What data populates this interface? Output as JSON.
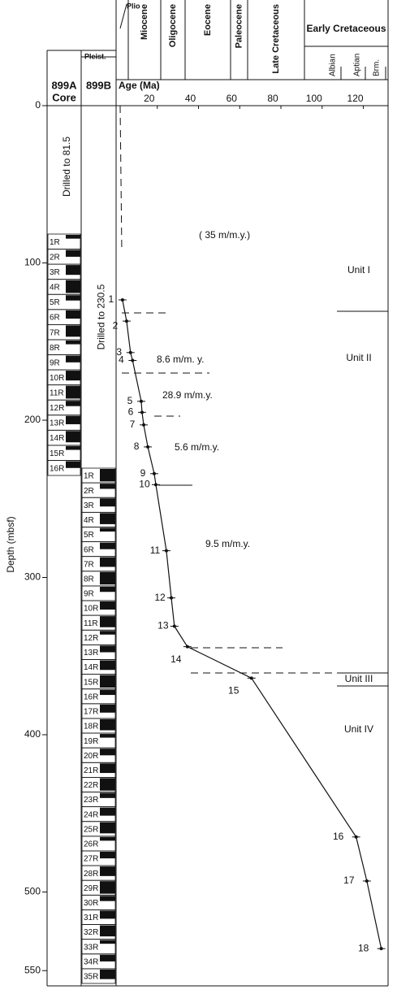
{
  "chart_data": {
    "type": "line",
    "x_label": "Age (Ma)",
    "y_label": "Depth (mbsf)",
    "xlim": [
      0,
      132
    ],
    "xticks": [
      20,
      40,
      60,
      80,
      100,
      120
    ],
    "ylim": [
      0,
      560
    ],
    "yticks": [
      0,
      100,
      200,
      300,
      400,
      500,
      550
    ],
    "epochs": [
      "Plio",
      "Miocene",
      "Oligocene",
      "Eocene",
      "Paleocene",
      "Late Cretaceous",
      "Early Cretaceous"
    ],
    "stages": [
      "Albian",
      "Aptian",
      "Brm."
    ],
    "pleistocene": "Pleist.",
    "x": [
      3.1,
      5.1,
      7,
      8,
      12.2,
      12.6,
      13.4,
      15.4,
      18.5,
      19.3,
      24.4,
      26.8,
      28.3,
      34.6,
      65.7,
      116.5,
      121.7,
      128.7
    ],
    "series": [
      {
        "color": "#111111",
        "values": [
          123.5,
          137,
          157,
          162,
          188,
          195,
          203,
          217,
          234,
          241,
          283,
          313,
          331,
          344,
          364,
          465,
          493,
          536
        ]
      }
    ],
    "point_labels": [
      "1",
      "2",
      "3",
      "4",
      "5",
      "6",
      "7",
      "8",
      "9",
      "10",
      "11",
      "12",
      "13",
      "14",
      "15",
      "16",
      "17",
      "18"
    ],
    "rates": [
      "( 35 m/m.y.)",
      "8.6  m/m. y.",
      "28.9 m/m.y.",
      "5.6 m/m.y.",
      "9.5 m/m.y."
    ],
    "units": [
      "Unit I",
      "Unit II",
      "Unit III",
      "Unit IV"
    ],
    "holes": [
      {
        "name": "899A",
        "sub": "Core",
        "note": "Drilled to 81.5",
        "cores": [
          "1R",
          "2R",
          "3R",
          "4R",
          "5R",
          "6R",
          "7R",
          "8R",
          "9R",
          "10R",
          "11R",
          "12R",
          "13R",
          "14R",
          "15R",
          "16R"
        ]
      },
      {
        "name": "899B",
        "note": "Drilled to 230.5",
        "cores": [
          "1R",
          "2R",
          "3R",
          "4R",
          "5R",
          "6R",
          "7R",
          "8R",
          "9R",
          "10R",
          "11R",
          "12R",
          "13R",
          "14R",
          "15R",
          "16R",
          "17R",
          "18R",
          "19R",
          "20R",
          "21R",
          "22R",
          "23R",
          "24R",
          "25R",
          "26R",
          "27R",
          "28R",
          "29R",
          "30R",
          "31R",
          "32R",
          "33R",
          "34R",
          "35R"
        ]
      }
    ]
  }
}
